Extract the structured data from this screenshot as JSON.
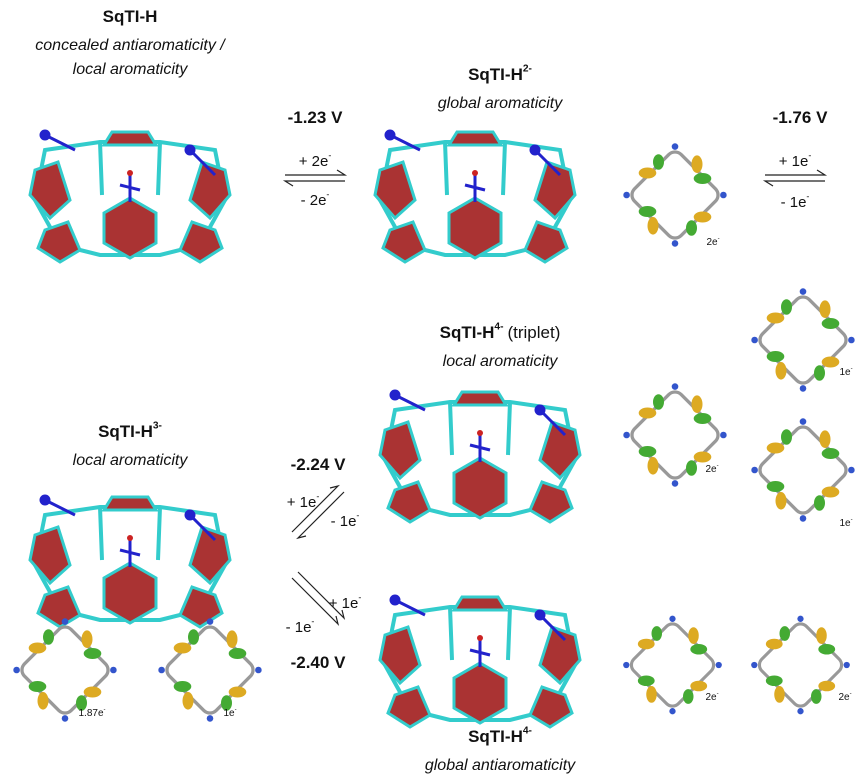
{
  "species": [
    {
      "name": "SqTI-H",
      "lines": [
        "concealed antiaromaticity /",
        "local aromaticity"
      ]
    },
    {
      "name": "SqTI-H",
      "charge": "2-",
      "lines": [
        "global aromaticity"
      ]
    },
    {
      "name": "SqTI-H",
      "charge": "4-",
      "note": "(triplet)",
      "lines": [
        "local aromaticity"
      ]
    },
    {
      "name": "SqTI-H",
      "charge": "3-",
      "lines": [
        "local aromaticity"
      ]
    },
    {
      "name": "SqTI-H",
      "charge": "4-",
      "lines": [
        "global antiaromaticity"
      ]
    }
  ],
  "potentials": [
    "-1.23 V",
    "-1.76 V",
    "-2.24 V",
    "-2.40 V"
  ],
  "reactions": [
    {
      "forward": {
        "text": "+ 2e",
        "sup": "-"
      },
      "back": {
        "text": "- 2e",
        "sup": "-"
      }
    },
    {
      "forward": {
        "text": "+ 1e",
        "sup": "-"
      },
      "back": {
        "text": "- 1e",
        "sup": "-"
      }
    },
    {
      "forward": {
        "text": "+ 1e",
        "sup": "-"
      },
      "back": {
        "text": "- 1e",
        "sup": "-"
      }
    },
    {
      "forward": {
        "text": "+ 1e",
        "sup": "-"
      },
      "back": {
        "text": "- 1e",
        "sup": "-"
      }
    }
  ],
  "orbitals": [
    {
      "text": "2e",
      "sup": "-"
    },
    {
      "text": "2e",
      "sup": "-"
    },
    {
      "text": "1e",
      "sup": "-"
    },
    {
      "text": "1e",
      "sup": "-"
    },
    {
      "text": "1.87e",
      "sup": "-"
    },
    {
      "text": "1e",
      "sup": "-"
    },
    {
      "text": "2e",
      "sup": "-"
    },
    {
      "text": "2e",
      "sup": "-"
    }
  ]
}
